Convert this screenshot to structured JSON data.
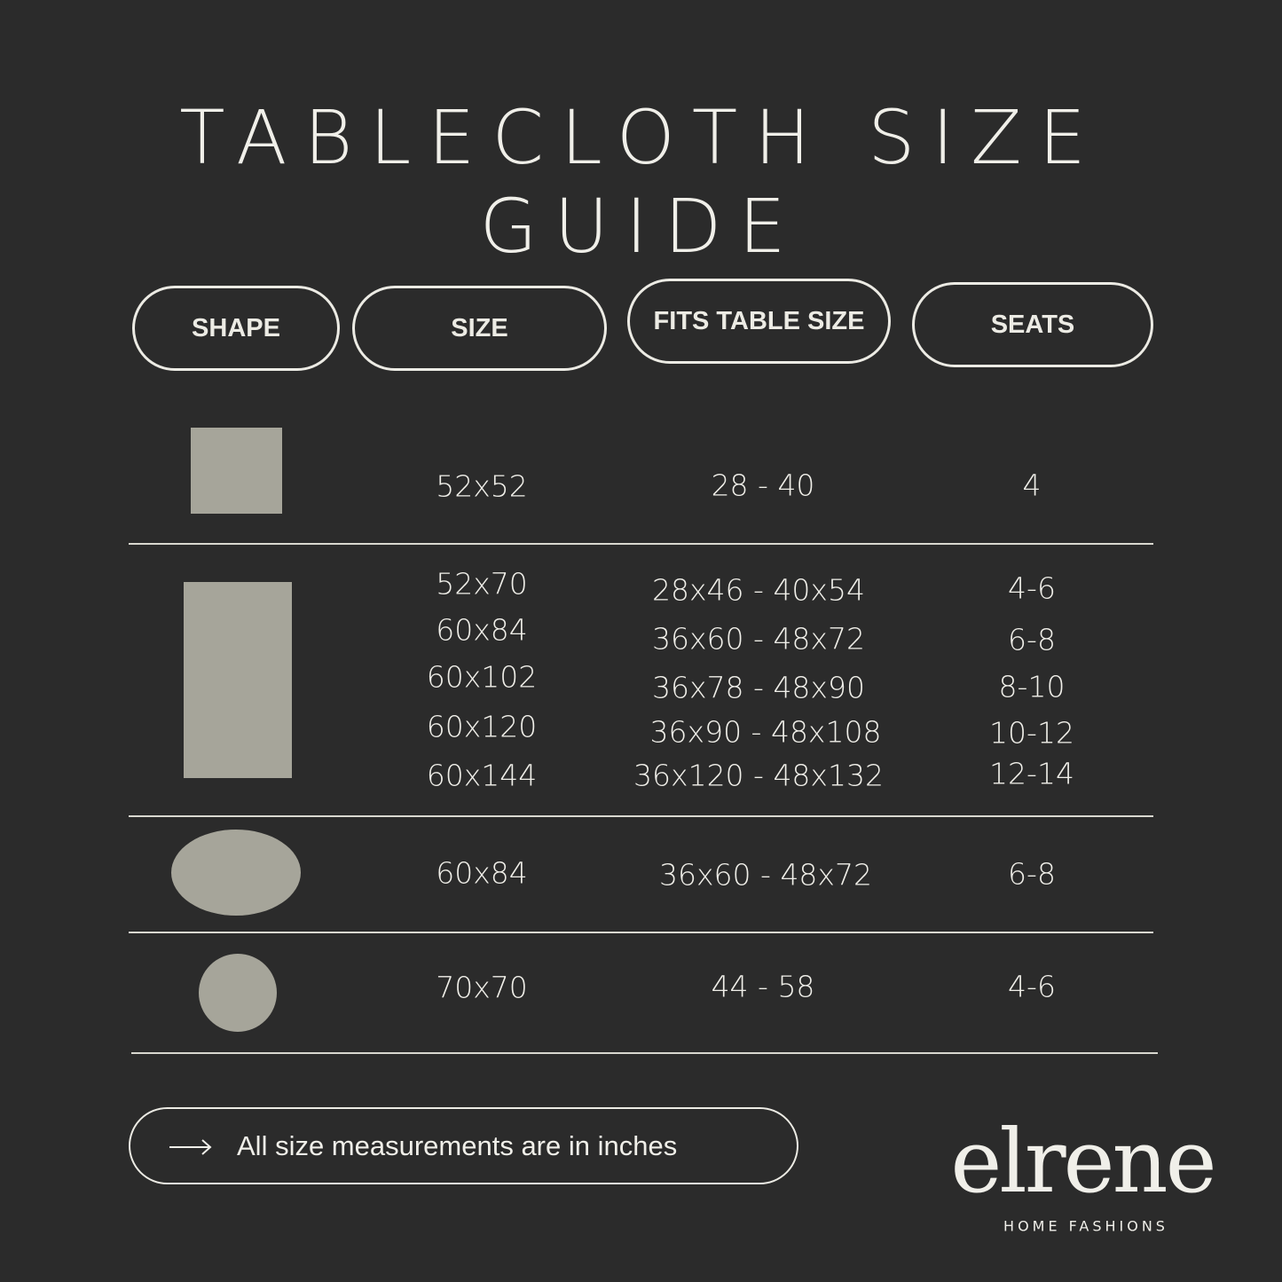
{
  "title": "TABLECLOTH SIZE GUIDE",
  "headers": {
    "shape": "SHAPE",
    "size": "SIZE",
    "fits": "FITS TABLE SIZE",
    "seats": "SEATS"
  },
  "colors": {
    "background": "#2b2b2b",
    "shape_fill": "#a6a59a",
    "text": "#f0efe9"
  },
  "rows": [
    {
      "shape": "square",
      "sizes": [
        "52x52"
      ],
      "fits": [
        "28 - 40"
      ],
      "seats": [
        "4"
      ]
    },
    {
      "shape": "rectangle",
      "sizes": [
        "52x70",
        "60x84",
        "60x102",
        "60x120",
        "60x144"
      ],
      "fits": [
        "28x46 - 40x54",
        "36x60 - 48x72",
        "36x78 - 48x90",
        "36x90 - 48x108",
        "36x120 - 48x132"
      ],
      "seats": [
        "4-6",
        "6-8",
        "8-10",
        "10-12",
        "12-14"
      ]
    },
    {
      "shape": "oval",
      "sizes": [
        "60x84"
      ],
      "fits": [
        "36x60 - 48x72"
      ],
      "seats": [
        "6-8"
      ]
    },
    {
      "shape": "round",
      "sizes": [
        "70x70"
      ],
      "fits": [
        "44 - 58"
      ],
      "seats": [
        "4-6"
      ]
    }
  ],
  "note": {
    "icon": "arrow-right-icon",
    "text": "All size measurements are in inches"
  },
  "brand": {
    "logo": "elrene",
    "tagline": "HOME FASHIONS"
  }
}
